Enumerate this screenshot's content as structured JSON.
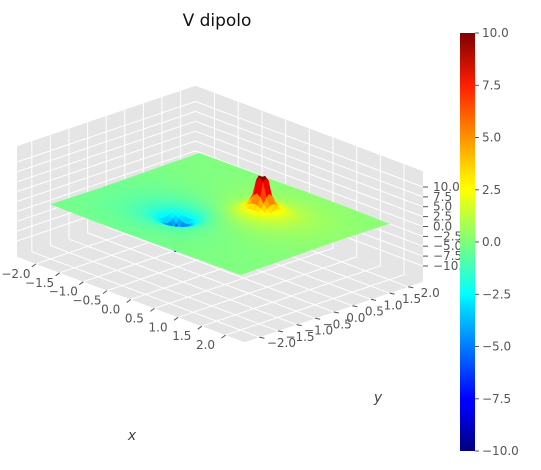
{
  "chart_data": {
    "type": "surface3d",
    "title": "V dipolo",
    "xlabel": "x",
    "ylabel": "y",
    "zlabel": "",
    "xlim": [
      -2.0,
      2.0
    ],
    "ylim": [
      -2.0,
      2.0
    ],
    "zlim": [
      -10.0,
      10.0
    ],
    "x_ticks": [
      "−2.0",
      "−1.5",
      "−1.0",
      "−0.5",
      "0.0",
      "0.5",
      "1.0",
      "1.5",
      "2.0"
    ],
    "y_ticks": [
      "−2.0",
      "−1.5",
      "−1.0",
      "−0.5",
      "0.0",
      "0.5",
      "1.0",
      "1.5",
      "2.0"
    ],
    "z_ticks": [
      "−10.0",
      "−7.5",
      "−5.0",
      "−2.5",
      "0.0",
      "2.5",
      "5.0",
      "7.5",
      "10.0"
    ],
    "colorbar_ticks": [
      "−10.0",
      "−7.5",
      "−5.0",
      "−2.5",
      "0.0",
      "2.5",
      "5.0",
      "7.5",
      "10.0"
    ],
    "colormap": "jet",
    "clip": [
      -10.0,
      10.0
    ],
    "charges": [
      {
        "x": 0.5,
        "y": 0.5,
        "q": 1.0
      },
      {
        "x": -0.5,
        "y": -0.5,
        "q": -1.0
      }
    ],
    "grid": true,
    "pane_color": "#e5e5e5",
    "grid_color": "#ffffff"
  }
}
